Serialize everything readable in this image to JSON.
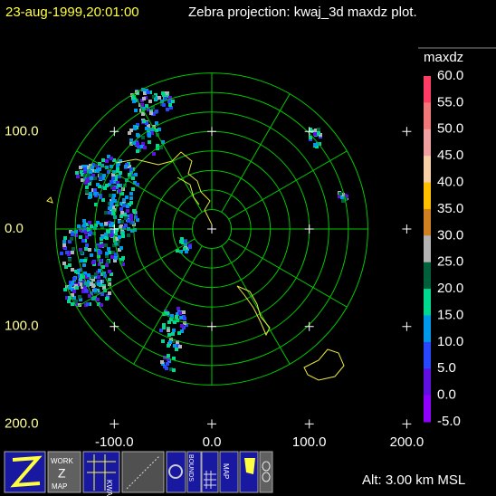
{
  "header": {
    "timestamp": "23-aug-1999,20:01:00",
    "title": "Zebra projection: kwaj_3d maxdz plot."
  },
  "axes": {
    "x_labels": [
      "-100.0",
      "0.0",
      "100.0",
      "200.0"
    ],
    "y_labels": [
      "100.0",
      "0.0",
      "100.0",
      "200.0"
    ]
  },
  "colorbar": {
    "field": "maxdz",
    "labels": [
      "60.0",
      "55.0",
      "50.0",
      "45.0",
      "40.0",
      "35.0",
      "30.0",
      "25.0",
      "20.0",
      "15.0",
      "10.0",
      "5.0",
      "0.0",
      "-5.0"
    ],
    "colors": [
      "#ff3c64",
      "#f07878",
      "#f0a0a0",
      "#f8d0a8",
      "#ffc000",
      "#d08020",
      "#b4b4b4",
      "#00603c",
      "#00d890",
      "#0098e8",
      "#2848ff",
      "#6010e0",
      "#9000ff"
    ]
  },
  "toolbar": {
    "work_icon": [
      "WORK",
      "Z",
      "MAP"
    ],
    "kwaj_icon": "KWAJ",
    "bounds_icon": "BOUNDS",
    "map_icon": "MAP"
  },
  "status": "Alt: 3.00 km MSL"
}
